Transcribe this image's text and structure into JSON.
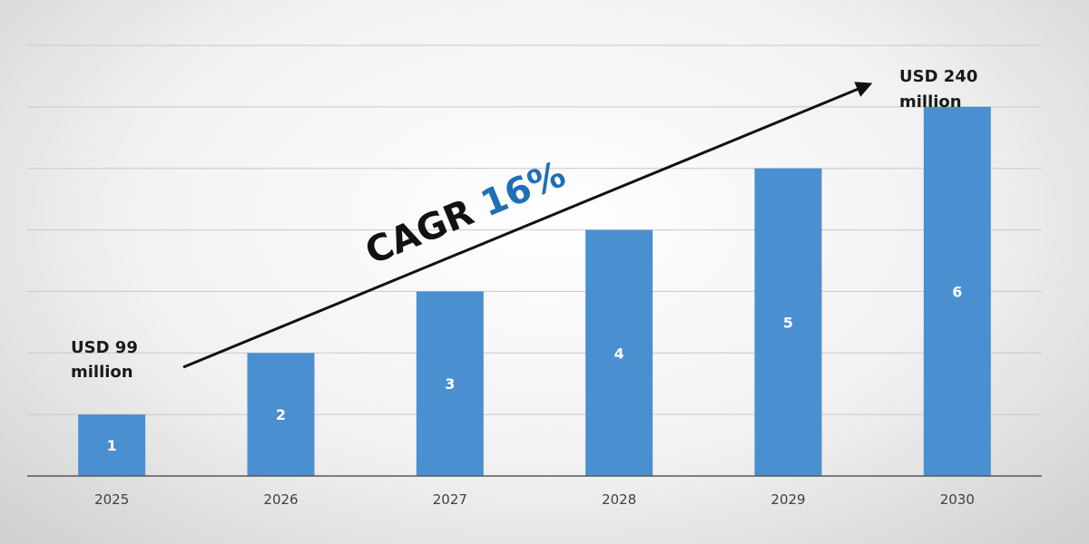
{
  "chart_data": {
    "type": "bar",
    "title": "",
    "xlabel": "",
    "ylabel": "",
    "categories": [
      "2025",
      "2026",
      "2027",
      "2028",
      "2029",
      "2030"
    ],
    "values": [
      1,
      2,
      3,
      4,
      5,
      6
    ],
    "data_labels": [
      "1",
      "2",
      "3",
      "4",
      "5",
      "6"
    ],
    "ylim": [
      0,
      7
    ],
    "grid": true,
    "legend": "none",
    "bar_color": "#4a8fd0",
    "annotations": {
      "start_label_line1": "USD  99",
      "start_label_line2": "million",
      "end_label_line1": "USD 240",
      "end_label_line2": "million",
      "cagr_prefix": "CAGR ",
      "cagr_value": "16%"
    }
  }
}
